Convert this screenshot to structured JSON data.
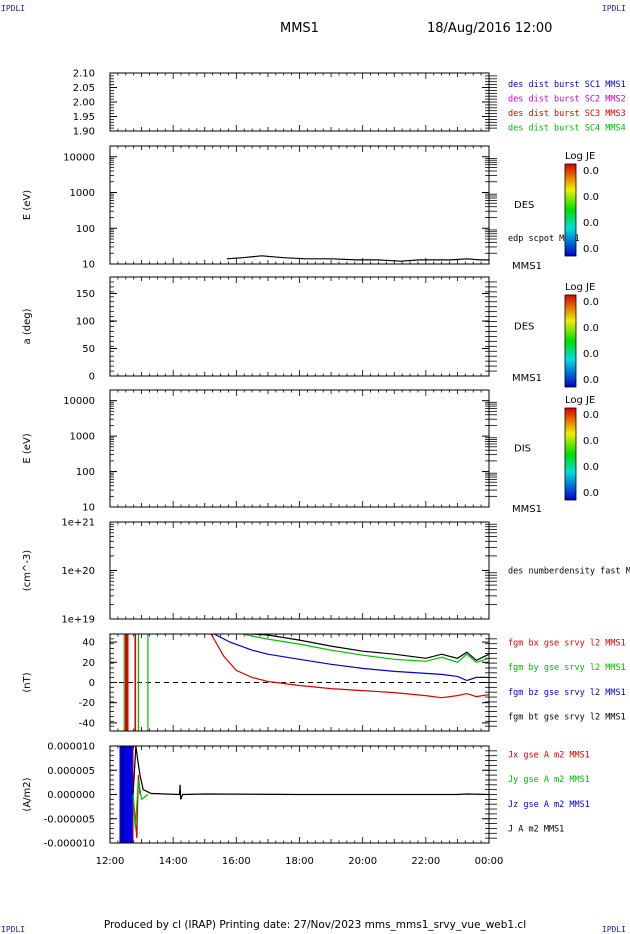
{
  "header": {
    "left_corner": "IPDLI",
    "right_corner": "IPDLI",
    "title": "MMS1",
    "datetime": "18/Aug/2016 12:00",
    "bottom_left_corner": "IPDLI",
    "bottom_right_corner": "IPDLI"
  },
  "footer": {
    "text": "Produced by cl (IRAP)   Printing date: 27/Nov/2023   mms_mms1_srvy_vue_web1.cl"
  },
  "chart_data": {
    "type": "line",
    "x_axis": {
      "range": [
        "12:00",
        "00:00"
      ],
      "ticks": [
        "12:00",
        "14:00",
        "16:00",
        "18:00",
        "20:00",
        "22:00",
        "00:00"
      ]
    },
    "panels": [
      {
        "ylabel": "",
        "scale": "linear",
        "ylim": [
          1.9,
          2.1
        ],
        "ticks": [
          "2.10",
          "2.05",
          "2.00",
          "1.95",
          "1.90"
        ],
        "legend": [
          {
            "text": "des dist burst SC1 MMS1",
            "color": "#0000cc"
          },
          {
            "text": "des dist burst SC2 MMS2",
            "color": "#cc00cc"
          },
          {
            "text": "des dist burst SC3 MMS3",
            "color": "#dd0000"
          },
          {
            "text": "des dist burst SC4 MMS4",
            "color": "#00bb00"
          }
        ],
        "series": []
      },
      {
        "ylabel": "E (eV)",
        "scale": "log",
        "ylim": [
          10,
          20000
        ],
        "ticks": [
          "10000",
          "1000",
          "100",
          "10"
        ],
        "side_label": "DES",
        "side_label2": "MMS1",
        "legend": [
          {
            "text": "edp scpot MMS1",
            "color": "#000000"
          }
        ],
        "colorbar": {
          "title": "Log JE",
          "labels": [
            "0.0",
            "0.0",
            "0.0",
            "0.0"
          ]
        },
        "series": [
          {
            "color": "#000000",
            "x": [
              3.7,
              4.2,
              4.8,
              5.5,
              6.2,
              7.0,
              7.8,
              8.5,
              9.2,
              9.8,
              10.4,
              10.8,
              11.3,
              11.7,
              12.0
            ],
            "y": [
              14,
              15,
              17,
              15,
              14,
              14,
              13,
              13,
              12,
              13,
              13,
              13,
              14,
              13,
              13
            ]
          }
        ]
      },
      {
        "ylabel": "a (deg)",
        "scale": "linear",
        "ylim": [
          0,
          180
        ],
        "ticks": [
          "150",
          "100",
          "50",
          "0"
        ],
        "side_label": "DES",
        "side_label2": "MMS1",
        "colorbar": {
          "title": "Log JE",
          "labels": [
            "0.0",
            "0.0",
            "0.0",
            "0.0"
          ]
        },
        "series": []
      },
      {
        "ylabel": "E (eV)",
        "scale": "log",
        "ylim": [
          10,
          20000
        ],
        "ticks": [
          "10000",
          "1000",
          "100",
          "10"
        ],
        "side_label": "DIS",
        "side_label2": "MMS1",
        "colorbar": {
          "title": "Log JE",
          "labels": [
            "0.0",
            "0.0",
            "0.0",
            "0.0"
          ]
        },
        "series": []
      },
      {
        "ylabel": "(cm^-3)",
        "scale": "log",
        "ylim": [
          1e+19,
          1e+21
        ],
        "ticks": [
          "1e+21",
          "1e+20",
          "1e+19"
        ],
        "legend": [
          {
            "text": "des numberdensity fast M",
            "color": "#000000"
          }
        ],
        "series": []
      },
      {
        "ylabel": "(nT)",
        "scale": "linear",
        "ylim": [
          -48,
          48
        ],
        "ticks": [
          "40",
          "20",
          "0",
          "-20",
          "-40"
        ],
        "zero_line": true,
        "legend": [
          {
            "text": "fgm bx gse srvy l2 MMS1",
            "color": "#dd0000"
          },
          {
            "text": "fgm by gse srvy l2 MMS1",
            "color": "#00bb00"
          },
          {
            "text": "fgm bz gse srvy l2 MMS1",
            "color": "#0000cc"
          },
          {
            "text": "fgm bt gse srvy l2 MMS1",
            "color": "#000000"
          }
        ],
        "spikes": [
          {
            "x": 0.45,
            "color": "#00bb00"
          },
          {
            "x": 0.5,
            "color": "#dd0000"
          },
          {
            "x": 0.53,
            "color": "#dd0000"
          },
          {
            "x": 0.56,
            "color": "#dd0000"
          },
          {
            "x": 0.8,
            "color": "#dd0000"
          },
          {
            "x": 0.9,
            "color": "#00bb00"
          },
          {
            "x": 1.2,
            "color": "#00bb00"
          }
        ],
        "series": [
          {
            "name": "fgm bx gse srvy l2 MMS1",
            "color": "#dd0000",
            "x": [
              3.2,
              3.6,
              4.0,
              4.5,
              5.0,
              6.0,
              7.0,
              8.0,
              9.0,
              10.0,
              10.5,
              11.0,
              11.3,
              11.6,
              12.0
            ],
            "y": [
              48,
              26,
              12,
              5,
              1,
              -3,
              -6,
              -8,
              -10,
              -13,
              -15,
              -13,
              -11,
              -14,
              -12
            ]
          },
          {
            "name": "fgm by gse srvy l2 MMS1",
            "color": "#00bb00",
            "x": [
              4.2,
              4.5,
              5.0,
              6.0,
              7.0,
              8.0,
              9.0,
              10.0,
              10.5,
              11.0,
              11.3,
              11.6,
              12.0
            ],
            "y": [
              48,
              46,
              43,
              38,
              32,
              27,
              23,
              21,
              25,
              20,
              28,
              20,
              24
            ]
          },
          {
            "name": "fgm bz gse srvy l2 MMS1",
            "color": "#0000cc",
            "x": [
              3.3,
              3.8,
              4.5,
              5.0,
              6.0,
              7.0,
              8.0,
              9.0,
              10.0,
              10.5,
              11.0,
              11.3,
              11.6,
              12.0
            ],
            "y": [
              48,
              40,
              32,
              28,
              23,
              18,
              14,
              11,
              9,
              8,
              6,
              2,
              5,
              5
            ]
          },
          {
            "name": "fgm bt gse srvy l2 MMS1",
            "color": "#000000",
            "x": [
              4.5,
              5.0,
              6.0,
              7.0,
              8.0,
              9.0,
              10.0,
              10.5,
              11.0,
              11.3,
              11.6,
              12.0
            ],
            "y": [
              48,
              47,
              42,
              36,
              31,
              28,
              24,
              28,
              24,
              30,
              22,
              28
            ]
          }
        ]
      },
      {
        "ylabel": "(A/m2)",
        "scale": "linear",
        "ylim": [
          -1e-05,
          1e-05
        ],
        "ticks": [
          "0.000010",
          "0.000005",
          "0.000000",
          "-0.000005",
          "-0.000010"
        ],
        "legend": [
          {
            "text": "Jx gse A m2 MMS1",
            "color": "#dd0000"
          },
          {
            "text": "Jy gse A m2 MMS1",
            "color": "#00bb00"
          },
          {
            "text": "Jz gse A m2 MMS1",
            "color": "#0000cc"
          },
          {
            "text": "J A m2 MMS1",
            "color": "#000000"
          }
        ],
        "block": {
          "x0": 0.3,
          "x1": 0.73,
          "color": "#0000ee"
        },
        "series": [
          {
            "name": "Jx gse A m2 MMS1",
            "color": "#dd0000",
            "x": [
              0.73,
              0.85,
              0.9,
              0.95
            ],
            "y": [
              0,
              -9e-06,
              4e-06,
              0
            ]
          },
          {
            "name": "Jy gse A m2 MMS1",
            "color": "#00bb00",
            "x": [
              0.73,
              0.8,
              0.9,
              1.0,
              1.2
            ],
            "y": [
              0,
              -7e-06,
              3e-06,
              -1e-06,
              0
            ]
          },
          {
            "name": "J A m2 MMS1",
            "color": "#000000",
            "x": [
              0.73,
              0.82,
              0.88,
              0.95,
              1.05,
              1.3,
              2.2,
              2.22,
              2.24,
              2.3,
              3.0,
              6.0,
              11.0,
              11.3,
              12.0
            ],
            "y": [
              0,
              1e-05,
              7e-06,
              4e-06,
              1e-06,
              2e-07,
              0,
              2e-06,
              -1e-06,
              0,
              1e-07,
              0,
              0,
              1e-07,
              0
            ]
          }
        ]
      }
    ]
  }
}
